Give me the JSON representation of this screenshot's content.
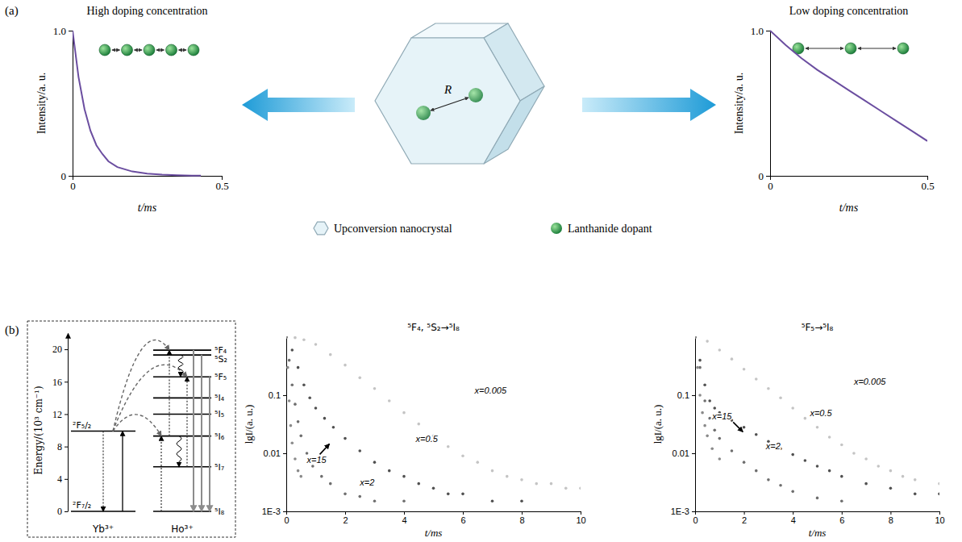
{
  "panel_labels": [
    "(a)",
    "(b)"
  ],
  "illustration": {
    "distance_label": "R",
    "legend_items": [
      "Upconversion nanocrystal",
      "Lanthanide dopant"
    ]
  },
  "chart_data": [
    {
      "type": "line",
      "title": "High doping concentration",
      "xlabel": "t/ms",
      "ylabel": "Intensity/a. u.",
      "x": [
        0,
        0.02,
        0.04,
        0.06,
        0.08,
        0.1,
        0.12,
        0.15,
        0.2,
        0.25,
        0.3,
        0.35,
        0.4,
        0.43
      ],
      "values": [
        1,
        0.68,
        0.46,
        0.31,
        0.21,
        0.15,
        0.1,
        0.06,
        0.03,
        0.015,
        0.008,
        0.004,
        0.002,
        0.001
      ],
      "color": "#6b4ea0",
      "xlim": [
        0,
        0.5
      ],
      "ylim": [
        0,
        1
      ],
      "xticks": [
        0,
        0.5
      ],
      "yticks": [
        0,
        {
          "value": 1,
          "label": "1.0"
        }
      ]
    },
    {
      "type": "line",
      "title": "Low doping concentration",
      "xlabel": "t/ms",
      "ylabel": "Intensity/a. u.",
      "x": [
        0,
        0.05,
        0.1,
        0.15,
        0.2,
        0.25,
        0.3,
        0.35,
        0.4,
        0.45,
        0.5
      ],
      "values": [
        1,
        0.9,
        0.81,
        0.73,
        0.66,
        0.59,
        0.52,
        0.45,
        0.38,
        0.31,
        0.24
      ],
      "color": "#6b4ea0",
      "xlim": [
        0,
        0.5
      ],
      "ylim": [
        0,
        1
      ],
      "xticks": [
        0,
        0.5
      ],
      "yticks": [
        0,
        {
          "value": 1,
          "label": "1.0"
        }
      ]
    },
    {
      "type": "energy_levels",
      "ylabel": "Energy/(10³ cm⁻¹)",
      "ylim": [
        0,
        22
      ],
      "yticks": [
        0,
        4,
        8,
        12,
        16,
        20
      ],
      "groups": [
        {
          "name": "Yb³⁺",
          "levels": [
            {
              "label": "²F₅/₂",
              "value": 9.9
            },
            {
              "label": "²F₇/₂",
              "value": 0
            }
          ]
        },
        {
          "name": "Ho³⁺",
          "levels": [
            {
              "label": "⁵F₄",
              "value": 19.9
            },
            {
              "label": "⁵S₂",
              "value": 19.3
            },
            {
              "label": "⁵F₅",
              "value": 16.6
            },
            {
              "label": "⁵I₄",
              "value": 14.0
            },
            {
              "label": "⁵I₅",
              "value": 12.0
            },
            {
              "label": "⁵I₆",
              "value": 9.3
            },
            {
              "label": "⁵I₇",
              "value": 5.5
            },
            {
              "label": "⁵I₈",
              "value": 0
            }
          ]
        }
      ]
    },
    {
      "type": "scatter",
      "title": "⁵F₄, ⁵S₂→⁵I₈",
      "xlabel": "t/ms",
      "ylabel": "lgI/(a. u.)",
      "log": "y",
      "xlim": [
        0,
        10
      ],
      "ylim": [
        0.001,
        1
      ],
      "xticks": [
        0,
        2,
        4,
        6,
        8,
        10
      ],
      "yticks": [
        {
          "value": 0.001,
          "label": "1E-3"
        },
        0.01,
        0.1
      ],
      "series": [
        {
          "name": "x=0.005",
          "color": "#c4c4c4",
          "x": [
            0,
            0.3,
            0.6,
            1,
            1.5,
            2,
            2.5,
            3,
            3.5,
            4,
            4.5,
            5,
            5.5,
            6,
            6.5,
            7,
            7.5,
            8,
            8.5,
            9,
            9.5,
            10
          ],
          "values": [
            1,
            0.98,
            0.9,
            0.75,
            0.5,
            0.33,
            0.2,
            0.13,
            0.08,
            0.05,
            0.032,
            0.02,
            0.013,
            0.009,
            0.007,
            0.005,
            0.004,
            0.0035,
            0.003,
            0.003,
            0.0025,
            0.0025
          ]
        },
        {
          "name": "x=0.5",
          "color": "#505050",
          "x": [
            0,
            0.2,
            0.4,
            0.6,
            0.8,
            1,
            1.3,
            1.6,
            2,
            2.5,
            3,
            3.5,
            4,
            4.5,
            5,
            5.5,
            6,
            7,
            8
          ],
          "values": [
            1,
            0.6,
            0.3,
            0.15,
            0.09,
            0.06,
            0.04,
            0.028,
            0.018,
            0.011,
            0.007,
            0.005,
            0.004,
            0.003,
            0.0025,
            0.002,
            0.002,
            0.0015,
            0.0015
          ]
        },
        {
          "name": "x=2",
          "color": "#6e6e6e",
          "x": [
            0,
            0.1,
            0.2,
            0.3,
            0.4,
            0.5,
            0.7,
            0.9,
            1.2,
            1.5,
            2,
            2.5,
            3,
            4
          ],
          "values": [
            1,
            0.4,
            0.15,
            0.07,
            0.035,
            0.02,
            0.01,
            0.006,
            0.004,
            0.003,
            0.002,
            0.0018,
            0.0015,
            0.0015
          ]
        },
        {
          "name": "x=15",
          "color": "#8a8a8a",
          "x": [
            0,
            0.05,
            0.1,
            0.15,
            0.2,
            0.3,
            0.4,
            0.5
          ],
          "values": [
            1,
            0.3,
            0.08,
            0.03,
            0.015,
            0.008,
            0.005,
            0.004
          ]
        }
      ]
    },
    {
      "type": "scatter",
      "title": "⁵F₅→⁵I₈",
      "xlabel": "t/ms",
      "ylabel": "lgI/(a. u.)",
      "log": "y",
      "xlim": [
        0,
        10
      ],
      "ylim": [
        0.001,
        1
      ],
      "xticks": [
        0,
        2,
        4,
        6,
        8,
        10
      ],
      "yticks": [
        {
          "value": 0.001,
          "label": "1E-3"
        },
        0.01,
        0.1
      ],
      "series": [
        {
          "name": "x=0.005",
          "color": "#c4c4c4",
          "x": [
            0,
            0.5,
            1,
            1.5,
            2,
            2.5,
            3,
            3.5,
            4,
            4.5,
            5,
            5.5,
            6,
            6.5,
            7,
            7.5,
            8,
            8.5,
            9,
            10
          ],
          "values": [
            1,
            0.85,
            0.6,
            0.42,
            0.28,
            0.19,
            0.13,
            0.09,
            0.06,
            0.04,
            0.028,
            0.019,
            0.014,
            0.01,
            0.008,
            0.006,
            0.005,
            0.004,
            0.0035,
            0.003
          ]
        },
        {
          "name": "x=0.5",
          "color": "#505050",
          "x": [
            0,
            0.2,
            0.4,
            0.6,
            0.8,
            1,
            1.5,
            2,
            2.5,
            3,
            3.5,
            4,
            4.5,
            5,
            5.5,
            6,
            7,
            8,
            9,
            10
          ],
          "values": [
            1,
            0.4,
            0.15,
            0.08,
            0.06,
            0.05,
            0.037,
            0.028,
            0.021,
            0.016,
            0.012,
            0.0095,
            0.0075,
            0.006,
            0.005,
            0.004,
            0.003,
            0.0025,
            0.002,
            0.002
          ]
        },
        {
          "name": "x=2",
          "color": "#6e6e6e",
          "x": [
            0,
            0.2,
            0.4,
            0.6,
            0.8,
            1,
            1.5,
            2,
            2.5,
            3,
            3.5,
            4,
            5,
            6
          ],
          "values": [
            1,
            0.3,
            0.08,
            0.04,
            0.025,
            0.018,
            0.011,
            0.007,
            0.005,
            0.0035,
            0.0028,
            0.0022,
            0.0017,
            0.0015
          ]
        },
        {
          "name": "x=15",
          "color": "#8a8a8a",
          "x": [
            0,
            0.1,
            0.2,
            0.3,
            0.4,
            0.5,
            0.7,
            1
          ],
          "values": [
            1,
            0.3,
            0.1,
            0.05,
            0.03,
            0.02,
            0.012,
            0.008
          ]
        }
      ]
    }
  ]
}
